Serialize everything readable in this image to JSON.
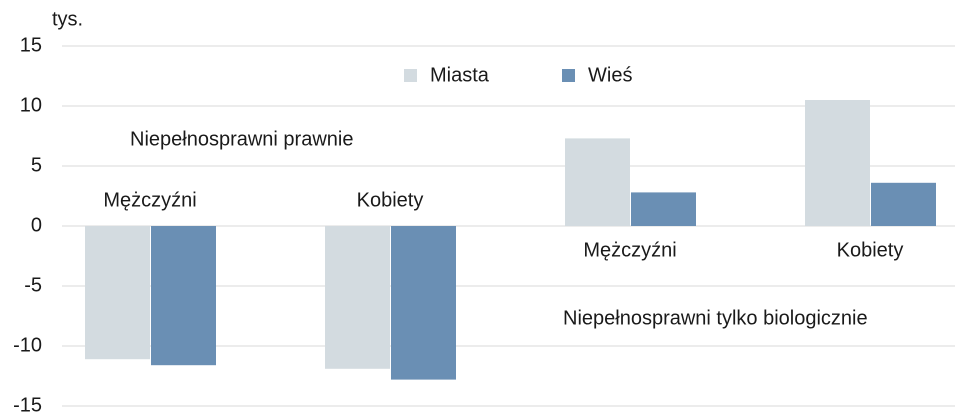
{
  "chart_data": {
    "type": "bar",
    "y_label": "tys.",
    "categories": [
      "Mężczyźni",
      "Kobiety",
      "Mężczyźni",
      "Kobiety"
    ],
    "series": [
      {
        "name": "Miasta",
        "color": "#d3dbe0",
        "values": [
          -11.1,
          -11.9,
          7.3,
          10.5
        ]
      },
      {
        "name": "Wieś",
        "color": "#6a8fb4",
        "values": [
          -11.6,
          -12.8,
          2.8,
          3.6
        ]
      }
    ],
    "annotations": [
      "Niepełnosprawni prawnie",
      "Niepełnosprawni tylko biologicznie"
    ],
    "ylim": [
      -15,
      15
    ],
    "yticks": [
      -15,
      -10,
      -5,
      0,
      5,
      10,
      15
    ],
    "grid": true,
    "legend": "top"
  }
}
